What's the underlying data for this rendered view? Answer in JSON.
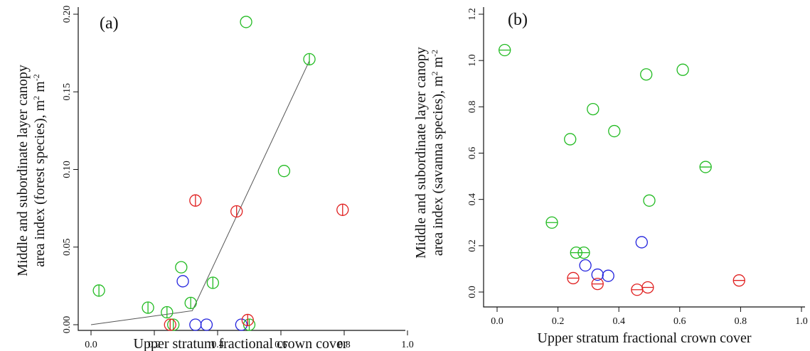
{
  "colors": {
    "green": "#22bb22",
    "red": "#e02020",
    "blue": "#2222dd",
    "fit_line": "#555555",
    "axis": "#111111"
  },
  "chart_data": [
    {
      "type": "scatter",
      "panel_label": "(a)",
      "xlabel": "Upper stratum fractional crown cover",
      "ylabel_line1": "Middle and subordinate layer canopy",
      "ylabel_line2": "area index (forest species), m",
      "ylabel_sup1": "2",
      "ylabel_mid": " m",
      "ylabel_sup2": "-2",
      "xlim": [
        -0.03,
        1.04
      ],
      "ylim": [
        -0.007,
        0.228
      ],
      "x_ticks": [
        "0.0",
        "0.2",
        "0.4",
        "0.6",
        "0.8",
        "1.0"
      ],
      "y_ticks": [
        "0.00",
        "0.05",
        "0.10",
        "0.15",
        "0.20"
      ],
      "grid": false,
      "fit_line": [
        [
          0.0,
          0.0
        ],
        [
          0.32,
          0.009
        ],
        [
          0.69,
          0.17
        ]
      ],
      "points": [
        {
          "x": 0.025,
          "y": 0.022,
          "color": "green",
          "marker": "circle-vbar"
        },
        {
          "x": 0.18,
          "y": 0.011,
          "color": "green",
          "marker": "circle-vbar"
        },
        {
          "x": 0.24,
          "y": 0.008,
          "color": "green",
          "marker": "circle-vbar"
        },
        {
          "x": 0.26,
          "y": 0.0,
          "color": "green",
          "marker": "circle-vbar"
        },
        {
          "x": 0.25,
          "y": 0.0,
          "color": "red",
          "marker": "circle-vbar"
        },
        {
          "x": 0.285,
          "y": 0.037,
          "color": "green",
          "marker": "circle"
        },
        {
          "x": 0.29,
          "y": 0.028,
          "color": "blue",
          "marker": "circle"
        },
        {
          "x": 0.315,
          "y": 0.014,
          "color": "green",
          "marker": "circle-vbar"
        },
        {
          "x": 0.33,
          "y": 0.08,
          "color": "red",
          "marker": "circle-vbar"
        },
        {
          "x": 0.33,
          "y": 0.0,
          "color": "blue",
          "marker": "circle"
        },
        {
          "x": 0.365,
          "y": 0.0,
          "color": "blue",
          "marker": "circle"
        },
        {
          "x": 0.385,
          "y": 0.027,
          "color": "green",
          "marker": "circle-vbar"
        },
        {
          "x": 0.46,
          "y": 0.073,
          "color": "red",
          "marker": "circle-vbar"
        },
        {
          "x": 0.475,
          "y": 0.0,
          "color": "blue",
          "marker": "circle"
        },
        {
          "x": 0.49,
          "y": 0.195,
          "color": "green",
          "marker": "circle"
        },
        {
          "x": 0.5,
          "y": 0.0,
          "color": "green",
          "marker": "circle-vbar"
        },
        {
          "x": 0.495,
          "y": 0.003,
          "color": "red",
          "marker": "circle-vbar"
        },
        {
          "x": 0.61,
          "y": 0.099,
          "color": "green",
          "marker": "circle"
        },
        {
          "x": 0.69,
          "y": 0.171,
          "color": "green",
          "marker": "circle-vbar"
        },
        {
          "x": 0.795,
          "y": 0.074,
          "color": "red",
          "marker": "circle-vbar"
        }
      ]
    },
    {
      "type": "scatter",
      "panel_label": "(b)",
      "xlabel": "Upper stratum fractional crown cover",
      "ylabel_line1": "Middle and subordinate layer canopy",
      "ylabel_line2": "area index (savanna species), m",
      "ylabel_sup1": "2",
      "ylabel_mid": " m",
      "ylabel_sup2": "-2",
      "xlim": [
        -0.04,
        1.03
      ],
      "ylim": [
        -0.04,
        1.24
      ],
      "x_ticks": [
        "0.0",
        "0.2",
        "0.4",
        "0.6",
        "0.8",
        "1.0"
      ],
      "y_ticks": [
        "0.0",
        "0.2",
        "0.4",
        "0.6",
        "0.8",
        "1.0",
        "1.2"
      ],
      "grid": false,
      "points": [
        {
          "x": 0.025,
          "y": 1.045,
          "color": "green",
          "marker": "circle-hbar"
        },
        {
          "x": 0.18,
          "y": 0.3,
          "color": "green",
          "marker": "circle-hbar"
        },
        {
          "x": 0.24,
          "y": 0.66,
          "color": "green",
          "marker": "circle"
        },
        {
          "x": 0.26,
          "y": 0.17,
          "color": "green",
          "marker": "circle-hbar"
        },
        {
          "x": 0.25,
          "y": 0.06,
          "color": "red",
          "marker": "circle-hbar"
        },
        {
          "x": 0.285,
          "y": 0.17,
          "color": "green",
          "marker": "circle-hbar"
        },
        {
          "x": 0.29,
          "y": 0.115,
          "color": "blue",
          "marker": "circle"
        },
        {
          "x": 0.315,
          "y": 0.79,
          "color": "green",
          "marker": "circle"
        },
        {
          "x": 0.33,
          "y": 0.075,
          "color": "blue",
          "marker": "circle"
        },
        {
          "x": 0.33,
          "y": 0.035,
          "color": "red",
          "marker": "circle-hbar"
        },
        {
          "x": 0.365,
          "y": 0.07,
          "color": "blue",
          "marker": "circle"
        },
        {
          "x": 0.385,
          "y": 0.695,
          "color": "green",
          "marker": "circle"
        },
        {
          "x": 0.46,
          "y": 0.01,
          "color": "red",
          "marker": "circle-hbar"
        },
        {
          "x": 0.475,
          "y": 0.215,
          "color": "blue",
          "marker": "circle"
        },
        {
          "x": 0.49,
          "y": 0.94,
          "color": "green",
          "marker": "circle"
        },
        {
          "x": 0.495,
          "y": 0.02,
          "color": "red",
          "marker": "circle-hbar"
        },
        {
          "x": 0.5,
          "y": 0.395,
          "color": "green",
          "marker": "circle"
        },
        {
          "x": 0.61,
          "y": 0.96,
          "color": "green",
          "marker": "circle"
        },
        {
          "x": 0.685,
          "y": 0.54,
          "color": "green",
          "marker": "circle-hbar"
        },
        {
          "x": 0.795,
          "y": 0.05,
          "color": "red",
          "marker": "circle-hbar"
        }
      ]
    }
  ]
}
